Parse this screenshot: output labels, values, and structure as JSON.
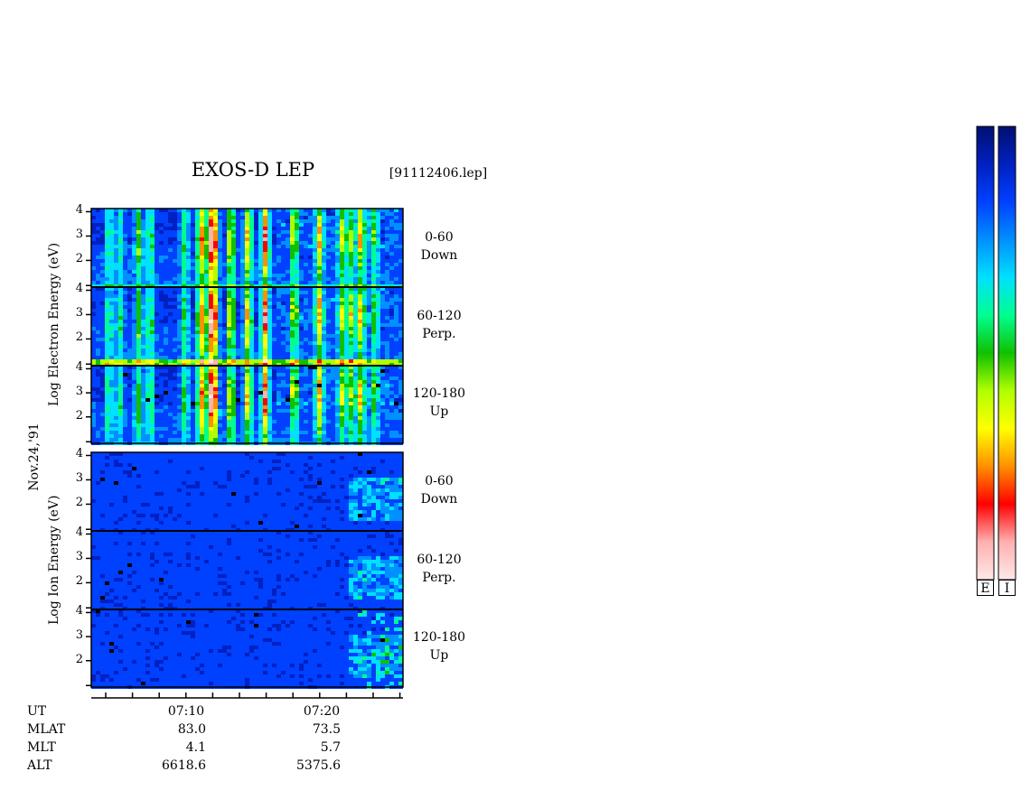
{
  "header": {
    "title": "EXOS-D LEP",
    "file_label": "[91112406.lep]"
  },
  "labels": {
    "electron_ylabel": "Log  Electron  Energy  (eV)",
    "ion_ylabel": "Log  Ion  Energy  (eV)",
    "date_label": "Nov.24,'91"
  },
  "panels": [
    {
      "species": "electron",
      "pitch_range": "0-60",
      "direction": "Down"
    },
    {
      "species": "electron",
      "pitch_range": "60-120",
      "direction": "Perp."
    },
    {
      "species": "electron",
      "pitch_range": "120-180",
      "direction": "Up"
    },
    {
      "species": "ion",
      "pitch_range": "0-60",
      "direction": "Down"
    },
    {
      "species": "ion",
      "pitch_range": "60-120",
      "direction": "Perp."
    },
    {
      "species": "ion",
      "pitch_range": "120-180",
      "direction": "Up"
    }
  ],
  "y_ticks": [
    "4",
    "3",
    "2"
  ],
  "info_rows": {
    "labels": [
      "UT",
      "MLAT",
      "MLT",
      "ALT"
    ],
    "columns": [
      {
        "ut": "07:10",
        "mlat": "83.0",
        "mlt": "4.1",
        "alt": "6618.6"
      },
      {
        "ut": "07:20",
        "mlat": "73.5",
        "mlt": "5.7",
        "alt": "5375.6"
      }
    ]
  },
  "colorbars": [
    {
      "label": "E"
    },
    {
      "label": "I"
    }
  ],
  "colormap": [
    "#001070",
    "#0020c0",
    "#0040ff",
    "#0090ff",
    "#00e0ff",
    "#00ff90",
    "#10c000",
    "#b0ff00",
    "#ffff00",
    "#ff9000",
    "#ff0000",
    "#ffb0b0",
    "#ffe8e8"
  ],
  "chart_data": {
    "type": "heatmap",
    "title": "EXOS-D LEP",
    "x": {
      "label": "UT",
      "tick_labels": [
        "07:10",
        "07:20"
      ]
    },
    "y": {
      "label": "Log Energy (eV)",
      "range": [
        1,
        4.1
      ],
      "ticks": [
        2,
        3,
        4
      ],
      "scale": "log10"
    },
    "panels": [
      {
        "species": "Electron",
        "pitch_angle": "0-60",
        "direction": "Down"
      },
      {
        "species": "Electron",
        "pitch_angle": "60-120",
        "direction": "Perp."
      },
      {
        "species": "Electron",
        "pitch_angle": "120-180",
        "direction": "Up"
      },
      {
        "species": "Ion",
        "pitch_angle": "0-60",
        "direction": "Down"
      },
      {
        "species": "Ion",
        "pitch_angle": "60-120",
        "direction": "Perp."
      },
      {
        "species": "Ion",
        "pitch_angle": "120-180",
        "direction": "Up"
      }
    ],
    "ephemeris": [
      {
        "ut": "07:10",
        "mlat": 83.0,
        "mlt": 4.1,
        "alt": 6618.6
      },
      {
        "ut": "07:20",
        "mlat": 73.5,
        "mlt": 5.7,
        "alt": 5375.6
      }
    ],
    "colorbar": {
      "orientation": "vertical",
      "channels": [
        "E",
        "I"
      ],
      "order": "high-intensity bottom to low top reversed"
    }
  }
}
